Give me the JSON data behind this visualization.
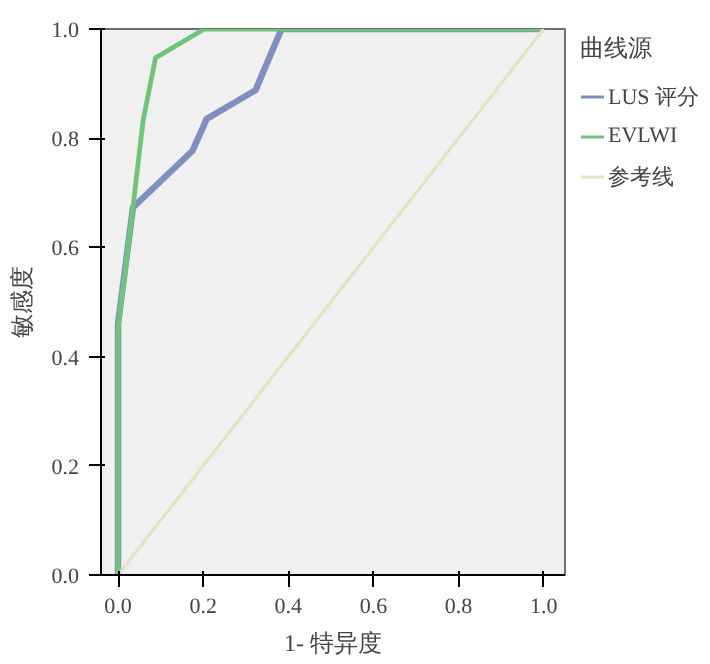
{
  "chart_data": {
    "type": "line",
    "xlabel": "1- 特异度",
    "ylabel": "敏感度",
    "legend_title": "曲线源",
    "legend": "right",
    "grid": false,
    "xlim": [
      -0.04,
      1.05
    ],
    "ylim": [
      0.0,
      1.0
    ],
    "xticks": [
      {
        "value": 0,
        "label": "0.0"
      },
      {
        "value": 0.2,
        "label": "0.2"
      },
      {
        "value": 0.4,
        "label": "0.4"
      },
      {
        "value": 0.6,
        "label": "0.6"
      },
      {
        "value": 0.8,
        "label": "0.8"
      },
      {
        "value": 1,
        "label": "1.0"
      }
    ],
    "yticks": [
      {
        "value": 0,
        "label": "0.0"
      },
      {
        "value": 0.2,
        "label": "0.2"
      },
      {
        "value": 0.4,
        "label": "0.4"
      },
      {
        "value": 0.6,
        "label": "0.6"
      },
      {
        "value": 0.8,
        "label": "0.8"
      },
      {
        "value": 1,
        "label": "1.0"
      }
    ],
    "series": [
      {
        "name": "LUS 评分",
        "color": "#7f8fc0",
        "x": [
          0,
          0,
          0.035,
          0.175,
          0.208,
          0.323,
          0.384,
          1
        ],
        "values": [
          0,
          0.46,
          0.673,
          0.777,
          0.835,
          0.888,
          1,
          1
        ]
      },
      {
        "name": "EVLWI",
        "color": "#6fc47a",
        "x": [
          0,
          0,
          0.035,
          0.059,
          0.088,
          0.203,
          1
        ],
        "values": [
          0,
          0.45,
          0.673,
          0.833,
          0.947,
          1,
          1
        ]
      },
      {
        "name": "参考线",
        "color": "#e3e3c0",
        "x": [
          0,
          1
        ],
        "values": [
          0,
          1
        ]
      }
    ]
  }
}
